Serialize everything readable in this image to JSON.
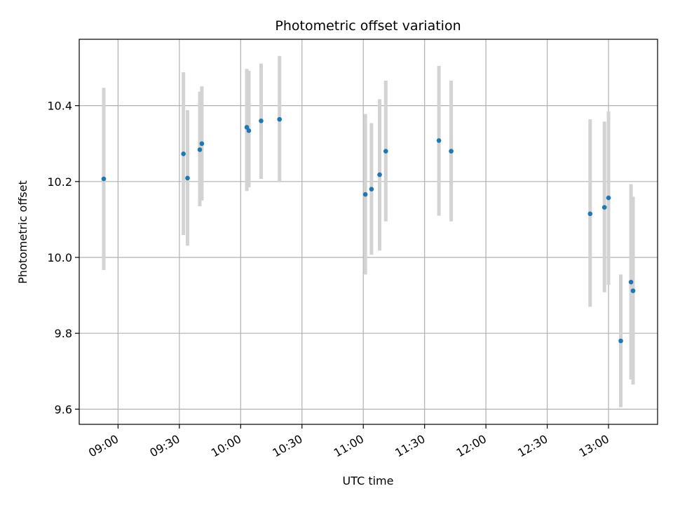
{
  "chart_data": {
    "type": "scatter",
    "title": "Photometric offset variation",
    "xlabel": "UTC time",
    "ylabel": "Photometric offset",
    "x_ticks": [
      "09:00",
      "09:30",
      "10:00",
      "10:30",
      "11:00",
      "11:30",
      "12:00",
      "12:30",
      "13:00"
    ],
    "y_ticks": [
      "9.6",
      "9.8",
      "10.0",
      "10.2",
      "10.4"
    ],
    "xlim": [
      "08:41",
      "13:24"
    ],
    "ylim": [
      9.56,
      10.575
    ],
    "grid": true,
    "colors": {
      "point": "#1f77b4",
      "errorbar": "#d3d3d3",
      "grid": "#b0b0b0",
      "axes": "#000000"
    },
    "points": [
      {
        "x": "08:53",
        "y": 10.207,
        "yerr": [
          9.967,
          10.447
        ]
      },
      {
        "x": "09:32",
        "y": 10.273,
        "yerr": [
          10.059,
          10.488
        ]
      },
      {
        "x": "09:34",
        "y": 10.209,
        "yerr": [
          10.031,
          10.388
        ]
      },
      {
        "x": "09:40",
        "y": 10.284,
        "yerr": [
          10.135,
          10.437
        ]
      },
      {
        "x": "09:41",
        "y": 10.3,
        "yerr": [
          10.15,
          10.451
        ]
      },
      {
        "x": "10:03",
        "y": 10.343,
        "yerr": [
          10.175,
          10.497
        ]
      },
      {
        "x": "10:04",
        "y": 10.334,
        "yerr": [
          10.185,
          10.492
        ]
      },
      {
        "x": "10:10",
        "y": 10.36,
        "yerr": [
          10.207,
          10.511
        ]
      },
      {
        "x": "10:19",
        "y": 10.364,
        "yerr": [
          10.198,
          10.531
        ]
      },
      {
        "x": "11:01",
        "y": 10.166,
        "yerr": [
          9.955,
          10.378
        ]
      },
      {
        "x": "11:04",
        "y": 10.18,
        "yerr": [
          10.007,
          10.354
        ]
      },
      {
        "x": "11:08",
        "y": 10.218,
        "yerr": [
          10.018,
          10.417
        ]
      },
      {
        "x": "11:11",
        "y": 10.28,
        "yerr": [
          10.095,
          10.466
        ]
      },
      {
        "x": "11:37",
        "y": 10.308,
        "yerr": [
          10.11,
          10.505
        ]
      },
      {
        "x": "11:43",
        "y": 10.28,
        "yerr": [
          10.095,
          10.466
        ]
      },
      {
        "x": "12:51",
        "y": 10.115,
        "yerr": [
          9.87,
          10.364
        ]
      },
      {
        "x": "12:58",
        "y": 10.132,
        "yerr": [
          9.908,
          10.358
        ]
      },
      {
        "x": "13:00",
        "y": 10.157,
        "yerr": [
          9.928,
          10.385
        ]
      },
      {
        "x": "13:06",
        "y": 9.78,
        "yerr": [
          9.605,
          9.955
        ]
      },
      {
        "x": "13:11",
        "y": 9.935,
        "yerr": [
          9.678,
          10.193
        ]
      },
      {
        "x": "13:12",
        "y": 9.912,
        "yerr": [
          9.665,
          10.16
        ]
      }
    ]
  }
}
